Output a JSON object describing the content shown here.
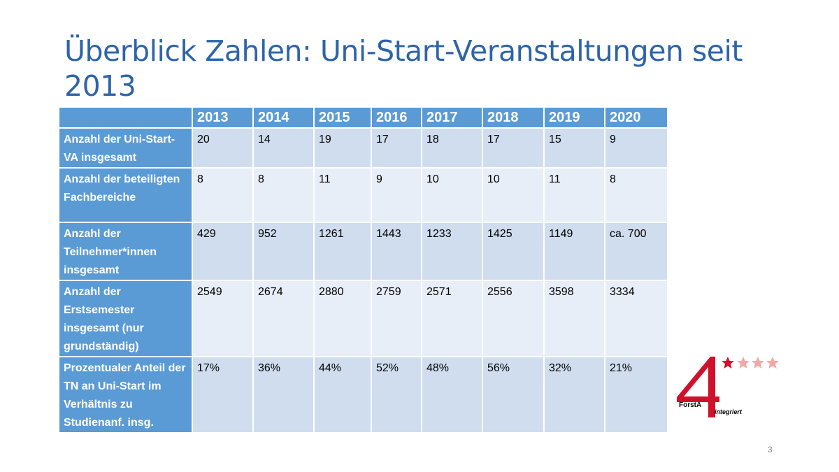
{
  "title": "Überblick Zahlen: Uni-Start-Veranstaltungen seit 2013",
  "table": {
    "header": [
      "",
      "2013",
      "2014",
      "2015",
      "2016",
      "2017",
      "2018",
      "2019",
      "2020"
    ],
    "rows": [
      {
        "label": "Anzahl der Uni-Start-VA insgesamt",
        "values": [
          "20",
          "14",
          "19",
          "17",
          "18",
          "17",
          "15",
          "9"
        ]
      },
      {
        "label": "Anzahl der beteiligten Fachbereiche",
        "values": [
          "8",
          "8",
          "11",
          "9",
          "10",
          "10",
          "11",
          "8"
        ]
      },
      {
        "label": "Anzahl der Teilnehmer*innen insgesamt",
        "values": [
          "429",
          "952",
          "1261",
          "1443",
          "1233",
          "1425",
          "1149",
          "ca. 700"
        ]
      },
      {
        "label": "Anzahl der Erstsemester insgesamt (nur grundständig)",
        "values": [
          "2549",
          "2674",
          "2880",
          "2759",
          "2571",
          "2556",
          "3598",
          "3334"
        ]
      },
      {
        "label": "Prozentualer Anteil der TN an Uni-Start im Verhältnis zu Studienanf. insg.",
        "values": [
          "17%",
          "36%",
          "44%",
          "52%",
          "48%",
          "56%",
          "32%",
          "21%"
        ]
      }
    ]
  },
  "logo": {
    "number": "4",
    "brand": "ForstA",
    "tagline": "integriert"
  },
  "page_number": "3",
  "colors": {
    "title": "#2e64a8",
    "header": "#5b9bd5",
    "row_dark": "#cfddee",
    "row_light": "#e8eef7",
    "logo_red": "#d0112b",
    "logo_star_light": "#f2a8a8"
  }
}
